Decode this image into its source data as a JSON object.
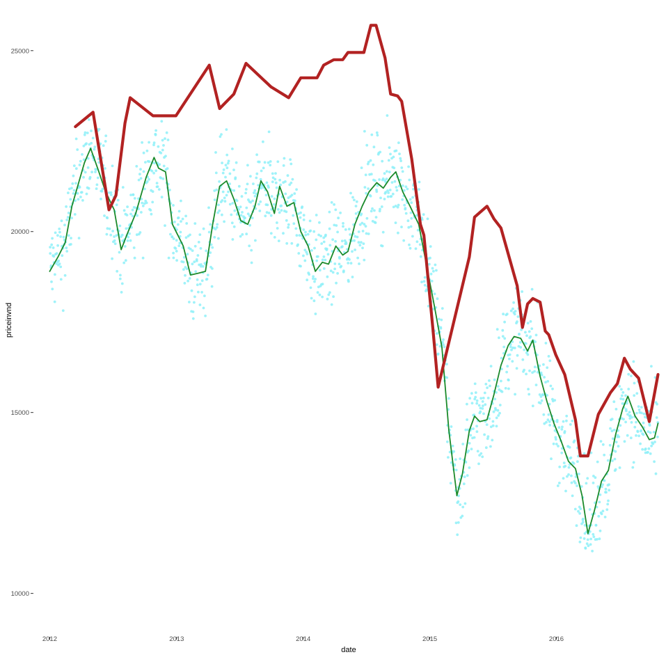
{
  "chart_data": {
    "type": "scatter",
    "title": "",
    "xlabel": "date",
    "ylabel": "priceinvnd",
    "xlim": [
      "2011-11-15",
      "2016-10-25"
    ],
    "ylim": [
      8800,
      26400
    ],
    "x_ticks": [
      {
        "label": "2012",
        "date": "2012-01-01"
      },
      {
        "label": "2013",
        "date": "2013-01-01"
      },
      {
        "label": "2014",
        "date": "2014-01-01"
      },
      {
        "label": "2015",
        "date": "2015-01-01"
      },
      {
        "label": "2016",
        "date": "2016-01-01"
      }
    ],
    "y_ticks": [
      {
        "label": "10000",
        "value": 10000
      },
      {
        "label": "15000",
        "value": 15000
      },
      {
        "label": "20000",
        "value": 20000
      },
      {
        "label": "25000",
        "value": 25000
      }
    ],
    "grid": false,
    "legend": "none",
    "colors": {
      "points": "#8ef0f8",
      "smooth_line": "#1a8a2a",
      "max_line": "#b22222",
      "tick_label": "#4d4d4d",
      "axis_title": "#000000",
      "background": "#ffffff"
    },
    "series": [
      {
        "type": "line",
        "color": "#b22222",
        "points": [
          [
            "2012-03-15",
            22900
          ],
          [
            "2012-05-05",
            23300
          ],
          [
            "2012-06-20",
            20600
          ],
          [
            "2012-07-10",
            21000
          ],
          [
            "2012-08-05",
            23000
          ],
          [
            "2012-08-20",
            23700
          ],
          [
            "2012-10-25",
            23200
          ],
          [
            "2012-12-30",
            23200
          ],
          [
            "2013-04-05",
            24600
          ],
          [
            "2013-05-05",
            23400
          ],
          [
            "2013-06-15",
            23800
          ],
          [
            "2013-07-20",
            24650
          ],
          [
            "2013-09-30",
            24000
          ],
          [
            "2013-11-20",
            23700
          ],
          [
            "2013-12-25",
            24250
          ],
          [
            "2014-02-10",
            24250
          ],
          [
            "2014-03-01",
            24600
          ],
          [
            "2014-03-30",
            24750
          ],
          [
            "2014-04-25",
            24750
          ],
          [
            "2014-05-10",
            24950
          ],
          [
            "2014-06-25",
            24950
          ],
          [
            "2014-07-15",
            25700
          ],
          [
            "2014-07-30",
            25700
          ],
          [
            "2014-08-25",
            24800
          ],
          [
            "2014-09-10",
            23800
          ],
          [
            "2014-09-30",
            23750
          ],
          [
            "2014-10-12",
            23600
          ],
          [
            "2014-11-10",
            22000
          ],
          [
            "2014-12-05",
            20200
          ],
          [
            "2014-12-15",
            19900
          ],
          [
            "2015-01-10",
            17300
          ],
          [
            "2015-01-25",
            15700
          ],
          [
            "2015-04-25",
            19300
          ],
          [
            "2015-05-10",
            20400
          ],
          [
            "2015-06-15",
            20700
          ],
          [
            "2015-07-05",
            20350
          ],
          [
            "2015-07-25",
            20100
          ],
          [
            "2015-09-10",
            18500
          ],
          [
            "2015-09-25",
            17350
          ],
          [
            "2015-10-10",
            18000
          ],
          [
            "2015-10-25",
            18150
          ],
          [
            "2015-11-15",
            18050
          ],
          [
            "2015-11-30",
            17250
          ],
          [
            "2015-12-10",
            17150
          ],
          [
            "2015-12-30",
            16600
          ],
          [
            "2016-01-25",
            16050
          ],
          [
            "2016-02-25",
            14800
          ],
          [
            "2016-03-10",
            13800
          ],
          [
            "2016-04-01",
            13800
          ],
          [
            "2016-05-01",
            14950
          ],
          [
            "2016-06-05",
            15550
          ],
          [
            "2016-06-25",
            15800
          ],
          [
            "2016-07-15",
            16500
          ],
          [
            "2016-08-01",
            16200
          ],
          [
            "2016-08-25",
            15950
          ],
          [
            "2016-09-25",
            14750
          ],
          [
            "2016-10-20",
            16050
          ]
        ]
      },
      {
        "type": "line",
        "color": "#1a8a2a",
        "points": [
          [
            "2012-01-01",
            18900
          ],
          [
            "2012-01-25",
            19300
          ],
          [
            "2012-02-15",
            19700
          ],
          [
            "2012-03-05",
            20700
          ],
          [
            "2012-04-10",
            21900
          ],
          [
            "2012-04-28",
            22300
          ],
          [
            "2012-05-20",
            21700
          ],
          [
            "2012-06-10",
            21100
          ],
          [
            "2012-07-05",
            20600
          ],
          [
            "2012-07-25",
            19500
          ],
          [
            "2012-08-10",
            19900
          ],
          [
            "2012-09-05",
            20500
          ],
          [
            "2012-10-05",
            21500
          ],
          [
            "2012-10-28",
            22050
          ],
          [
            "2012-11-10",
            21750
          ],
          [
            "2012-11-30",
            21650
          ],
          [
            "2012-12-20",
            20200
          ],
          [
            "2013-01-20",
            19600
          ],
          [
            "2013-02-10",
            18800
          ],
          [
            "2013-03-05",
            18850
          ],
          [
            "2013-03-25",
            18900
          ],
          [
            "2013-04-15",
            20200
          ],
          [
            "2013-05-05",
            21250
          ],
          [
            "2013-05-25",
            21400
          ],
          [
            "2013-06-15",
            20900
          ],
          [
            "2013-07-05",
            20300
          ],
          [
            "2013-07-25",
            20200
          ],
          [
            "2013-08-15",
            20700
          ],
          [
            "2013-09-01",
            21400
          ],
          [
            "2013-09-20",
            21100
          ],
          [
            "2013-10-10",
            20500
          ],
          [
            "2013-10-25",
            21250
          ],
          [
            "2013-11-15",
            20700
          ],
          [
            "2013-12-05",
            20800
          ],
          [
            "2013-12-25",
            20000
          ],
          [
            "2014-01-15",
            19600
          ],
          [
            "2014-02-05",
            18900
          ],
          [
            "2014-02-25",
            19150
          ],
          [
            "2014-03-15",
            19100
          ],
          [
            "2014-04-05",
            19600
          ],
          [
            "2014-04-25",
            19350
          ],
          [
            "2014-05-10",
            19450
          ],
          [
            "2014-05-30",
            20200
          ],
          [
            "2014-06-20",
            20700
          ],
          [
            "2014-07-10",
            21100
          ],
          [
            "2014-08-01",
            21350
          ],
          [
            "2014-08-20",
            21200
          ],
          [
            "2014-09-10",
            21500
          ],
          [
            "2014-09-25",
            21650
          ],
          [
            "2014-10-15",
            21100
          ],
          [
            "2014-11-05",
            20700
          ],
          [
            "2014-11-30",
            20200
          ],
          [
            "2014-12-20",
            19200
          ],
          [
            "2015-01-15",
            17900
          ],
          [
            "2015-02-05",
            16800
          ],
          [
            "2015-02-25",
            14500
          ],
          [
            "2015-03-20",
            12700
          ],
          [
            "2015-04-05",
            13300
          ],
          [
            "2015-04-25",
            14500
          ],
          [
            "2015-05-10",
            14900
          ],
          [
            "2015-05-25",
            14750
          ],
          [
            "2015-06-15",
            14800
          ],
          [
            "2015-07-05",
            15500
          ],
          [
            "2015-07-25",
            16300
          ],
          [
            "2015-08-15",
            16850
          ],
          [
            "2015-09-01",
            17100
          ],
          [
            "2015-09-20",
            17050
          ],
          [
            "2015-10-10",
            16700
          ],
          [
            "2015-10-25",
            17000
          ],
          [
            "2015-11-15",
            16000
          ],
          [
            "2015-12-05",
            15300
          ],
          [
            "2015-12-25",
            14700
          ],
          [
            "2016-01-15",
            14200
          ],
          [
            "2016-02-05",
            13650
          ],
          [
            "2016-02-25",
            13450
          ],
          [
            "2016-03-15",
            12700
          ],
          [
            "2016-04-01",
            11650
          ],
          [
            "2016-04-20",
            12300
          ],
          [
            "2016-05-10",
            13100
          ],
          [
            "2016-05-30",
            13400
          ],
          [
            "2016-06-20",
            14400
          ],
          [
            "2016-07-10",
            15100
          ],
          [
            "2016-07-25",
            15450
          ],
          [
            "2016-08-15",
            14900
          ],
          [
            "2016-09-05",
            14600
          ],
          [
            "2016-09-25",
            14250
          ],
          [
            "2016-10-10",
            14300
          ],
          [
            "2016-10-20",
            14700
          ]
        ]
      },
      {
        "type": "scatter",
        "color": "#8ef0f8",
        "description_of_spread": "daily observations scattered roughly +/-1200 around the green smoothed line",
        "spread": 1200,
        "points_per_week": 3
      }
    ]
  }
}
